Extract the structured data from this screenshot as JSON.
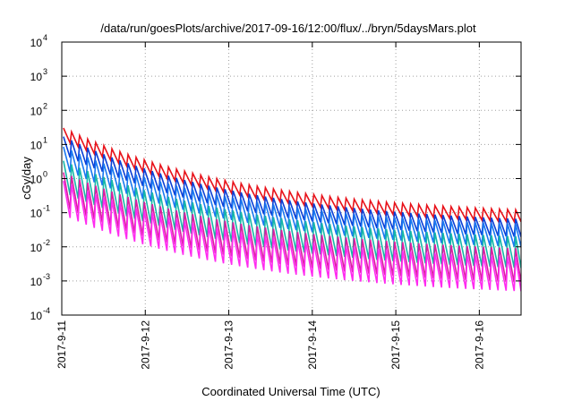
{
  "chart_data": {
    "type": "line",
    "title": "/data/run/goesPlots/archive/2017-09-16/12:00/flux/../bryn/5daysMars.plot",
    "xlabel": "Coordinated Universal Time (UTC)",
    "ylabel": "cGy/day",
    "y_scale": "log",
    "ylim": [
      0.0001,
      10000
    ],
    "y_ticks": [
      {
        "base": "10",
        "exp": "-4",
        "value": 0.0001
      },
      {
        "base": "10",
        "exp": "-3",
        "value": 0.001
      },
      {
        "base": "10",
        "exp": "-2",
        "value": 0.01
      },
      {
        "base": "10",
        "exp": "-1",
        "value": 0.1
      },
      {
        "base": "10",
        "exp": "0",
        "value": 1
      },
      {
        "base": "10",
        "exp": "1",
        "value": 10
      },
      {
        "base": "10",
        "exp": "2",
        "value": 100
      },
      {
        "base": "10",
        "exp": "3",
        "value": 1000
      },
      {
        "base": "10",
        "exp": "4",
        "value": 10000
      }
    ],
    "x_ticks": [
      "2017-9-11",
      "2017-9-12",
      "2017-9-13",
      "2017-9-14",
      "2017-9-15",
      "2017-9-16"
    ],
    "xlim_days": [
      0,
      5.5
    ],
    "grid": true,
    "legend": "none",
    "oscillation_period_days": 0.0967,
    "series": [
      {
        "color": "#e8121a",
        "peak_start": 32,
        "peak_end": 0.12,
        "trough_ratio": 0.45
      },
      {
        "color": "#0b3fd6",
        "peak_start": 18,
        "peak_end": 0.065,
        "trough_ratio": 0.3
      },
      {
        "color": "#1a78f0",
        "peak_start": 9,
        "peak_end": 0.045,
        "trough_ratio": 0.22
      },
      {
        "color": "#16b7a8",
        "peak_start": 3.5,
        "peak_end": 0.02,
        "trough_ratio": 0.12
      },
      {
        "color": "#d81fa0",
        "peak_start": 1.6,
        "peak_end": 0.009,
        "trough_ratio": 0.1
      },
      {
        "color": "#ff2bf0",
        "peak_start": 0.9,
        "peak_end": 0.005,
        "trough_ratio": 0.1
      }
    ]
  }
}
